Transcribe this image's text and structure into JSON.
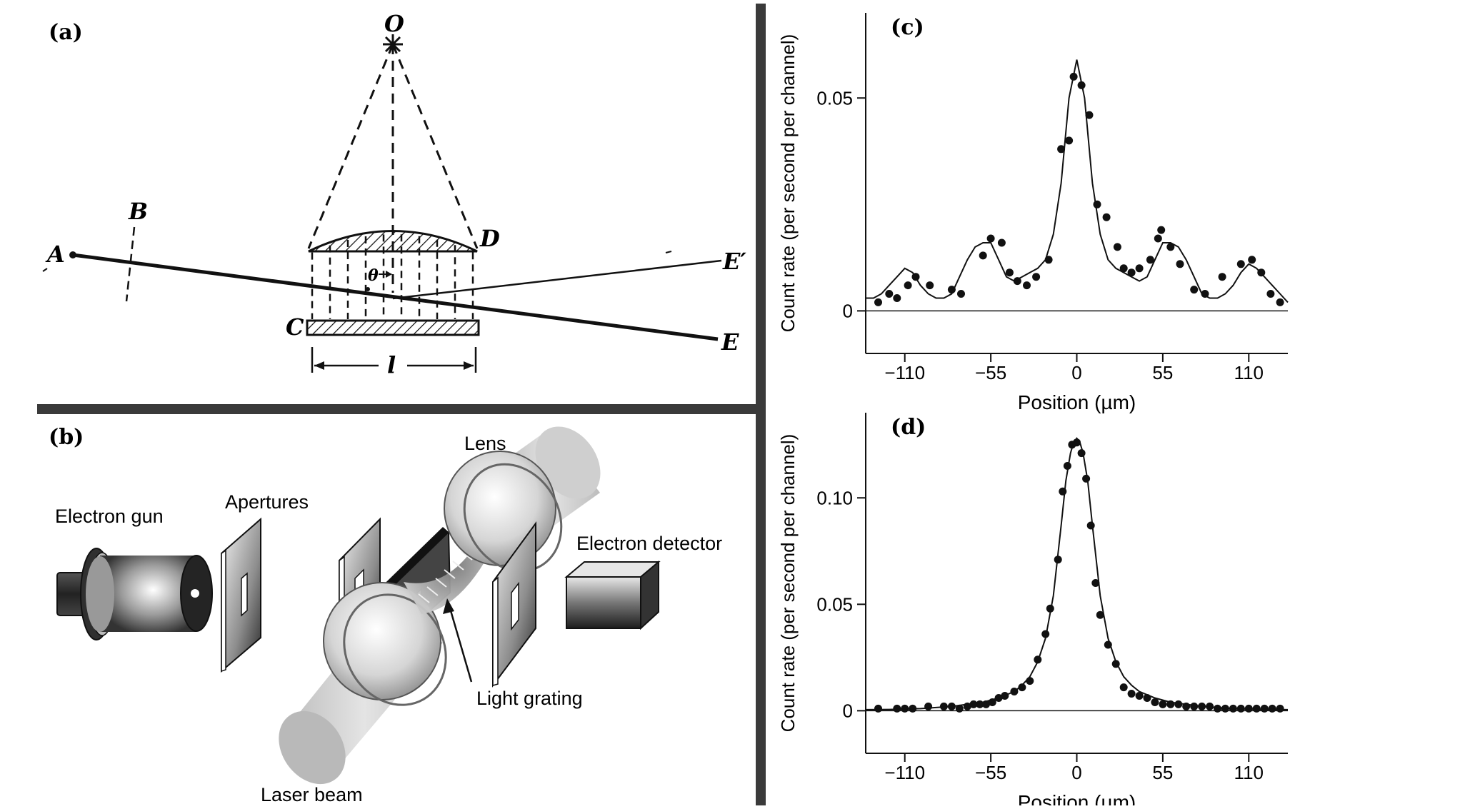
{
  "panels": {
    "a": {
      "label": "(a)",
      "points": {
        "O": "O",
        "A": "A",
        "B": "B",
        "C": "C",
        "D": "D",
        "E": "E",
        "E_prime": "E′",
        "theta": "θ",
        "l": "l"
      }
    },
    "b": {
      "label": "(b)",
      "components": {
        "electron_gun": "Electron gun",
        "apertures": "Apertures",
        "lens": "Lens",
        "electron_detector": "Electron detector",
        "light_grating": "Light grating",
        "laser_beam": "Laser beam"
      }
    }
  },
  "chart_data": [
    {
      "panel_label": "(c)",
      "type": "scatter",
      "xlabel": "Position (µm)",
      "ylabel": "Count rate (per second per channel)",
      "x_ticks": [
        -110,
        -55,
        0,
        55,
        110
      ],
      "x_tick_labels": [
        "−110",
        "−55",
        "0",
        "55",
        "110"
      ],
      "y_ticks": [
        0,
        0.05
      ],
      "y_tick_labels": [
        "0",
        "0.05"
      ],
      "xlim": [
        -135,
        135
      ],
      "ylim": [
        -0.01,
        0.07
      ],
      "grid": false,
      "series": [
        {
          "kind": "points",
          "x": [
            -127,
            -120,
            -115,
            -108,
            -103,
            -94,
            -80,
            -74,
            -60,
            -55,
            -48,
            -43,
            -38,
            -32,
            -26,
            -18,
            -10,
            -5,
            -2,
            3,
            8,
            13,
            19,
            26,
            30,
            35,
            40,
            47,
            52,
            54,
            60,
            66,
            75,
            82,
            93,
            105,
            112,
            118,
            124,
            130
          ],
          "y": [
            0.002,
            0.004,
            0.003,
            0.006,
            0.008,
            0.006,
            0.005,
            0.004,
            0.013,
            0.017,
            0.016,
            0.009,
            0.007,
            0.006,
            0.008,
            0.012,
            0.038,
            0.04,
            0.055,
            0.053,
            0.046,
            0.025,
            0.022,
            0.015,
            0.01,
            0.009,
            0.01,
            0.012,
            0.017,
            0.019,
            0.015,
            0.011,
            0.005,
            0.004,
            0.008,
            0.011,
            0.012,
            0.009,
            0.004,
            0.002
          ]
        },
        {
          "kind": "line",
          "x": [
            -135,
            -130,
            -125,
            -120,
            -115,
            -110,
            -105,
            -100,
            -95,
            -90,
            -85,
            -80,
            -75,
            -70,
            -65,
            -60,
            -55,
            -50,
            -45,
            -40,
            -35,
            -30,
            -25,
            -20,
            -15,
            -10,
            -5,
            0,
            5,
            10,
            15,
            20,
            25,
            30,
            35,
            40,
            45,
            50,
            55,
            60,
            65,
            70,
            75,
            80,
            85,
            90,
            95,
            100,
            105,
            110,
            115,
            120,
            125,
            130,
            135
          ],
          "y": [
            0.003,
            0.003,
            0.004,
            0.006,
            0.008,
            0.01,
            0.009,
            0.006,
            0.004,
            0.003,
            0.003,
            0.004,
            0.008,
            0.012,
            0.015,
            0.016,
            0.016,
            0.012,
            0.008,
            0.007,
            0.008,
            0.009,
            0.01,
            0.012,
            0.018,
            0.03,
            0.05,
            0.059,
            0.05,
            0.03,
            0.018,
            0.012,
            0.01,
            0.009,
            0.008,
            0.007,
            0.008,
            0.012,
            0.016,
            0.016,
            0.015,
            0.012,
            0.008,
            0.004,
            0.003,
            0.003,
            0.004,
            0.006,
            0.009,
            0.011,
            0.01,
            0.008,
            0.006,
            0.004,
            0.002
          ]
        }
      ]
    },
    {
      "panel_label": "(d)",
      "type": "scatter",
      "xlabel": "Position (µm)",
      "ylabel": "Count rate (per second per channel)",
      "x_ticks": [
        -110,
        -55,
        0,
        55,
        110
      ],
      "x_tick_labels": [
        "−110",
        "−55",
        "0",
        "55",
        "110"
      ],
      "y_ticks": [
        0,
        0.05,
        0.1
      ],
      "y_tick_labels": [
        "0",
        "0.05",
        "0.10"
      ],
      "xlim": [
        -135,
        135
      ],
      "ylim": [
        -0.02,
        0.14
      ],
      "grid": false,
      "series": [
        {
          "kind": "points",
          "x": [
            -127,
            -115,
            -110,
            -105,
            -95,
            -85,
            -80,
            -75,
            -70,
            -66,
            -62,
            -58,
            -54,
            -50,
            -46,
            -40,
            -35,
            -30,
            -25,
            -20,
            -17,
            -12,
            -9,
            -6,
            -3,
            0,
            3,
            6,
            9,
            12,
            15,
            20,
            25,
            30,
            35,
            40,
            45,
            50,
            55,
            60,
            65,
            70,
            75,
            80,
            85,
            90,
            95,
            100,
            105,
            110,
            115,
            120,
            125,
            130
          ],
          "y": [
            0.001,
            0.001,
            0.001,
            0.001,
            0.002,
            0.002,
            0.002,
            0.001,
            0.002,
            0.003,
            0.003,
            0.003,
            0.004,
            0.006,
            0.007,
            0.009,
            0.011,
            0.014,
            0.024,
            0.036,
            0.048,
            0.071,
            0.103,
            0.115,
            0.125,
            0.126,
            0.121,
            0.109,
            0.087,
            0.06,
            0.045,
            0.031,
            0.022,
            0.011,
            0.008,
            0.007,
            0.006,
            0.004,
            0.003,
            0.003,
            0.003,
            0.002,
            0.002,
            0.002,
            0.002,
            0.001,
            0.001,
            0.001,
            0.001,
            0.001,
            0.001,
            0.001,
            0.001,
            0.001
          ]
        },
        {
          "kind": "line",
          "x": [
            -135,
            -120,
            -100,
            -90,
            -80,
            -70,
            -60,
            -50,
            -40,
            -35,
            -30,
            -25,
            -20,
            -15,
            -10,
            -7,
            -4,
            -2,
            0,
            2,
            4,
            7,
            10,
            15,
            20,
            25,
            30,
            35,
            40,
            50,
            60,
            70,
            80,
            90,
            100,
            120,
            135
          ],
          "y": [
            0.0005,
            0.0006,
            0.001,
            0.0015,
            0.002,
            0.003,
            0.004,
            0.006,
            0.009,
            0.012,
            0.016,
            0.023,
            0.034,
            0.054,
            0.087,
            0.108,
            0.121,
            0.126,
            0.128,
            0.126,
            0.121,
            0.108,
            0.087,
            0.054,
            0.034,
            0.023,
            0.016,
            0.012,
            0.009,
            0.006,
            0.004,
            0.003,
            0.002,
            0.0015,
            0.001,
            0.0006,
            0.0005
          ]
        }
      ]
    }
  ]
}
